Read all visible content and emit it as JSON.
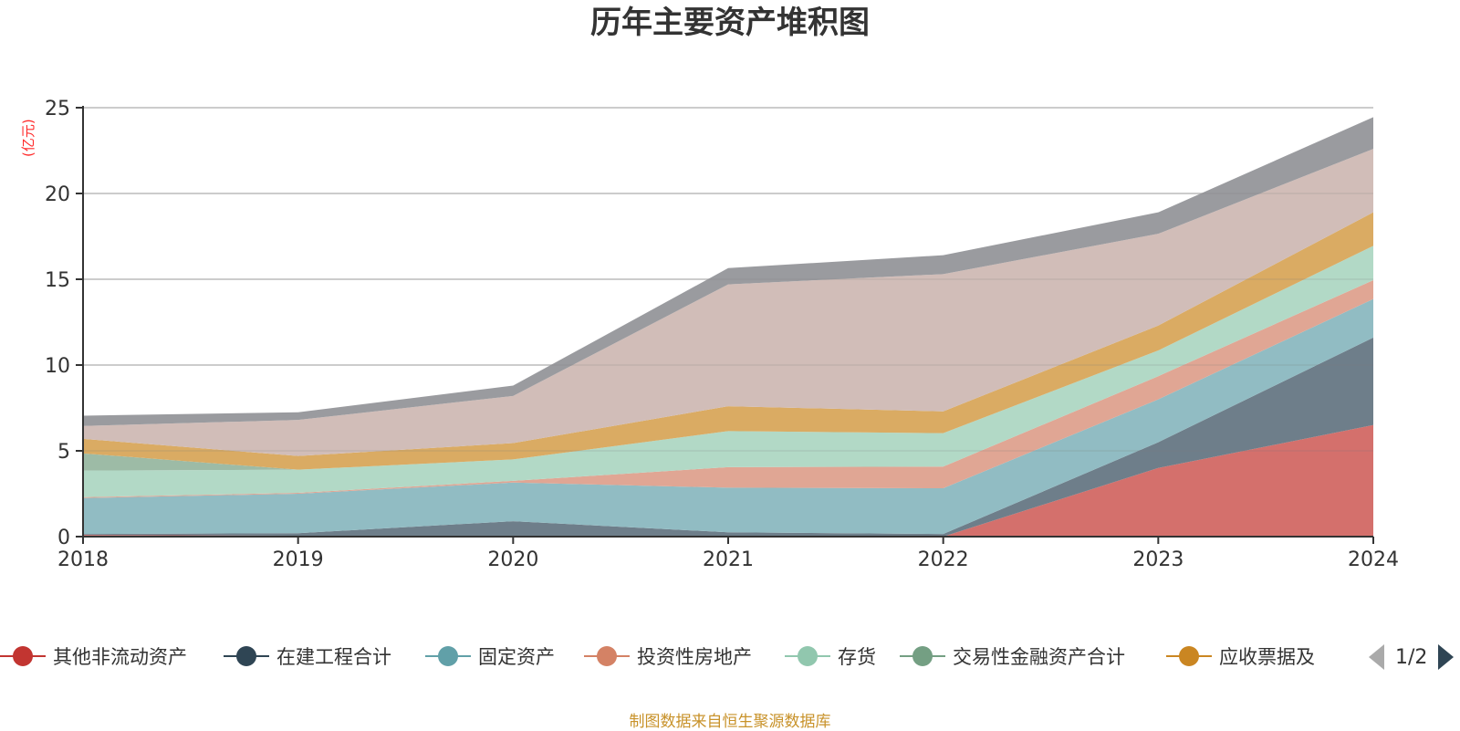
{
  "chart_data": {
    "type": "area",
    "stacked": true,
    "title": "历年主要资产堆积图",
    "ylabel": "(亿元)",
    "xlabel": "",
    "ylim": [
      0,
      25
    ],
    "yticks": [
      "0",
      "5",
      "10",
      "15",
      "20",
      "25"
    ],
    "ytick_values": [
      0,
      5,
      10,
      15,
      20,
      25
    ],
    "categories": [
      "2018",
      "2019",
      "2020",
      "2021",
      "2022",
      "2023",
      "2024"
    ],
    "grid": true,
    "legend_position": "bottom",
    "series": [
      {
        "name": "其他非流动资产",
        "color": "#c23531",
        "fill": "#d4706c",
        "legend": true,
        "values": [
          0.1,
          0.05,
          0.05,
          0.05,
          0.0,
          4.0,
          6.5
        ]
      },
      {
        "name": "在建工程合计",
        "color": "#2f4554",
        "fill": "#6e7e8a",
        "legend": true,
        "values": [
          0.05,
          0.15,
          0.85,
          0.2,
          0.15,
          1.5,
          5.1
        ]
      },
      {
        "name": "固定资产",
        "color": "#61a0a8",
        "fill": "#91bcc3",
        "legend": true,
        "values": [
          2.1,
          2.3,
          2.25,
          2.6,
          2.67,
          2.5,
          2.25
        ]
      },
      {
        "name": "投资性房地产",
        "color": "#d48265",
        "fill": "#e0a694",
        "legend": true,
        "values": [
          0.05,
          0.05,
          0.1,
          1.2,
          1.26,
          1.35,
          1.1
        ]
      },
      {
        "name": "存货",
        "color": "#91c7ae",
        "fill": "#b2d9c6",
        "legend": true,
        "values": [
          1.55,
          1.35,
          1.25,
          2.1,
          1.95,
          1.5,
          2.0
        ]
      },
      {
        "name": "交易性金融资产合计",
        "color": "#749f83",
        "fill": "#9dbba6",
        "legend": true,
        "values": [
          1.0,
          0.0,
          0.0,
          0.0,
          0.0,
          0.0,
          0.0
        ]
      },
      {
        "name": "应收票据及",
        "color": "#ca8622",
        "fill": "#daab63",
        "legend": true,
        "values": [
          0.85,
          0.8,
          0.95,
          1.45,
          1.27,
          1.45,
          1.95
        ]
      },
      {
        "name": "",
        "color": "#bda29a",
        "fill": "#d1bdb8",
        "legend": false,
        "values": [
          0.75,
          2.1,
          2.75,
          7.1,
          8.0,
          5.35,
          3.7
        ]
      },
      {
        "name": "",
        "color": "#6e7074",
        "fill": "#9a9b9f",
        "legend": false,
        "values": [
          0.6,
          0.45,
          0.6,
          0.95,
          1.1,
          1.25,
          1.85
        ]
      }
    ]
  },
  "legend": {
    "page": "1/2",
    "prev_icon": "triangle-left",
    "next_icon": "triangle-right"
  },
  "source": "制图数据来自恒生聚源数据库"
}
